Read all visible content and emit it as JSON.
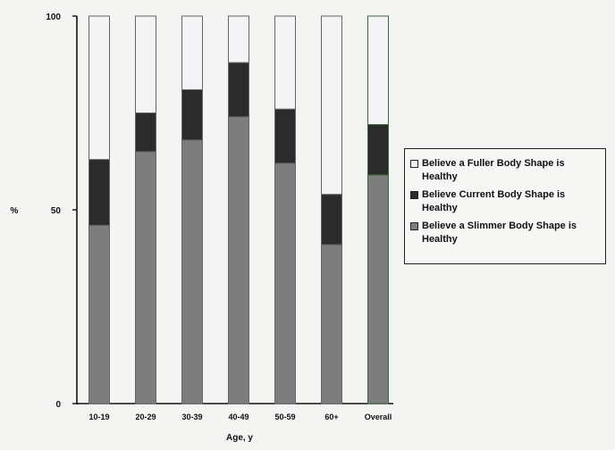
{
  "chart_data": {
    "type": "bar",
    "stacked": true,
    "title": "",
    "xlabel": "Age, y",
    "ylabel": "%",
    "ylim": [
      0,
      100
    ],
    "yticks": [
      0,
      50,
      100
    ],
    "grid": false,
    "legend_position": "right",
    "categories": [
      "10-19",
      "20-29",
      "30-39",
      "40-49",
      "50-59",
      "60+",
      "Overall"
    ],
    "series": [
      {
        "name": "Believe a Slimmer Body Shape is Healthy",
        "values": [
          46,
          65,
          68,
          74,
          62,
          41,
          59
        ],
        "color": "#7d7d7d"
      },
      {
        "name": "Believe Current Body Shape is Healthy",
        "values": [
          17,
          10,
          13,
          14,
          14,
          13,
          13
        ],
        "color": "#2b2b2b"
      },
      {
        "name": "Believe a Fuller Body Shape is Healthy",
        "values": [
          37,
          25,
          19,
          12,
          24,
          46,
          28
        ],
        "color": "#f4f4f6"
      }
    ],
    "legend_order": [
      2,
      1,
      0
    ]
  }
}
